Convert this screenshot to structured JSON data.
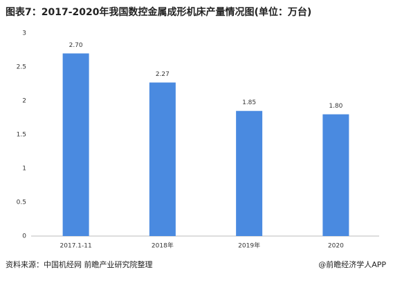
{
  "chart_data": {
    "type": "bar",
    "title": "图表7：2017-2020年我国数控金属成形机床产量情况图(单位：万台)",
    "categories": [
      "2017.1-11",
      "2018年",
      "2019年",
      "2020"
    ],
    "values": [
      2.7,
      2.27,
      1.85,
      1.8
    ],
    "value_labels": [
      "2.70",
      "2.27",
      "1.85",
      "1.80"
    ],
    "color": "#4a8ae0",
    "ylim": [
      0,
      3
    ],
    "yticks": [
      0,
      0.5,
      1,
      1.5,
      2,
      2.5,
      3
    ],
    "grid": false,
    "source": "资料来源：中国机经网 前瞻产业研究院整理",
    "credit": "@前瞻经济学人APP"
  }
}
